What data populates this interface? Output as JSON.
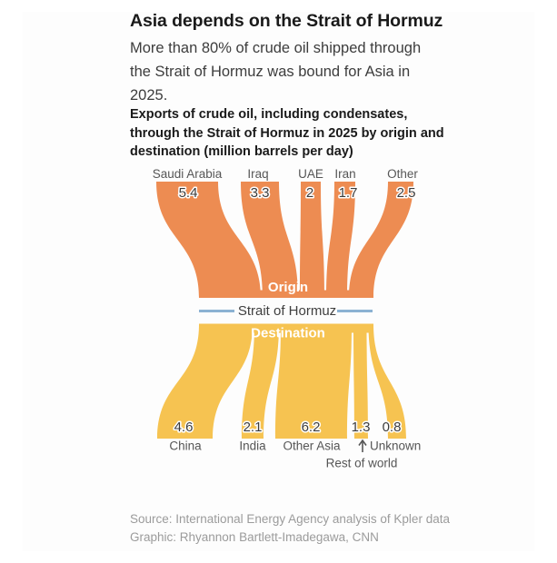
{
  "header": {
    "title": "Asia depends on the Strait of Hormuz",
    "subtitle_lines": [
      "More than 80% of crude oil shipped through",
      "the Strait of Hormuz was bound for Asia in",
      "2025."
    ]
  },
  "description_lines": [
    "Exports of crude oil, including condensates,",
    "through the Strait of Hormuz in 2025 by origin and",
    "destination (million barrels per day)"
  ],
  "chart_data": {
    "type": "sankey",
    "unit": "million barrels per day",
    "origin_group_label": "Origin",
    "destination_group_label": "Destination",
    "strait_label": "Strait of Hormuz",
    "origins": [
      {
        "label": "Saudi Arabia",
        "value": 5.4,
        "value_label": "5.4"
      },
      {
        "label": "Iraq",
        "value": 3.3,
        "value_label": "3.3"
      },
      {
        "label": "UAE",
        "value": 2,
        "value_label": "2"
      },
      {
        "label": "Iran",
        "value": 1.7,
        "value_label": "1.7"
      },
      {
        "label": "Other",
        "value": 2.5,
        "value_label": "2.5"
      }
    ],
    "destinations": [
      {
        "label": "China",
        "value": 4.6,
        "value_label": "4.6"
      },
      {
        "label": "India",
        "value": 2.1,
        "value_label": "2.1"
      },
      {
        "label": "Other Asia",
        "value": 6.2,
        "value_label": "6.2"
      },
      {
        "label": "Rest of world",
        "value": 1.3,
        "value_label": "1.3"
      },
      {
        "label": "Unknown",
        "value": 0.8,
        "value_label": "0.8"
      }
    ],
    "colors": {
      "origin_flow": "#ED8C52",
      "destination_flow": "#F6C351",
      "strait_line": "#8CB2D3"
    }
  },
  "footer": {
    "source": "Source: International Energy Agency analysis of Kpler data",
    "credit": "Graphic: Rhyannon Bartlett-Imadegawa, CNN"
  }
}
